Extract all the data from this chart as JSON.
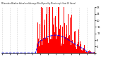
{
  "title": "Milwaukee Weather Actual and Average Wind Speed by Minute mph (Last 24 Hours)",
  "n_points": 144,
  "background_color": "#ffffff",
  "bar_color": "#ff0000",
  "line_color": "#0000ff",
  "ylim": [
    0,
    28
  ],
  "yticks": [
    0,
    4,
    8,
    12,
    16,
    20,
    24,
    28
  ],
  "ytick_labels": [
    "",
    "4",
    "8",
    "12",
    "16",
    "20",
    "24",
    "28"
  ],
  "grid_color": "#aaaaaa",
  "n_grid_lines": 13
}
